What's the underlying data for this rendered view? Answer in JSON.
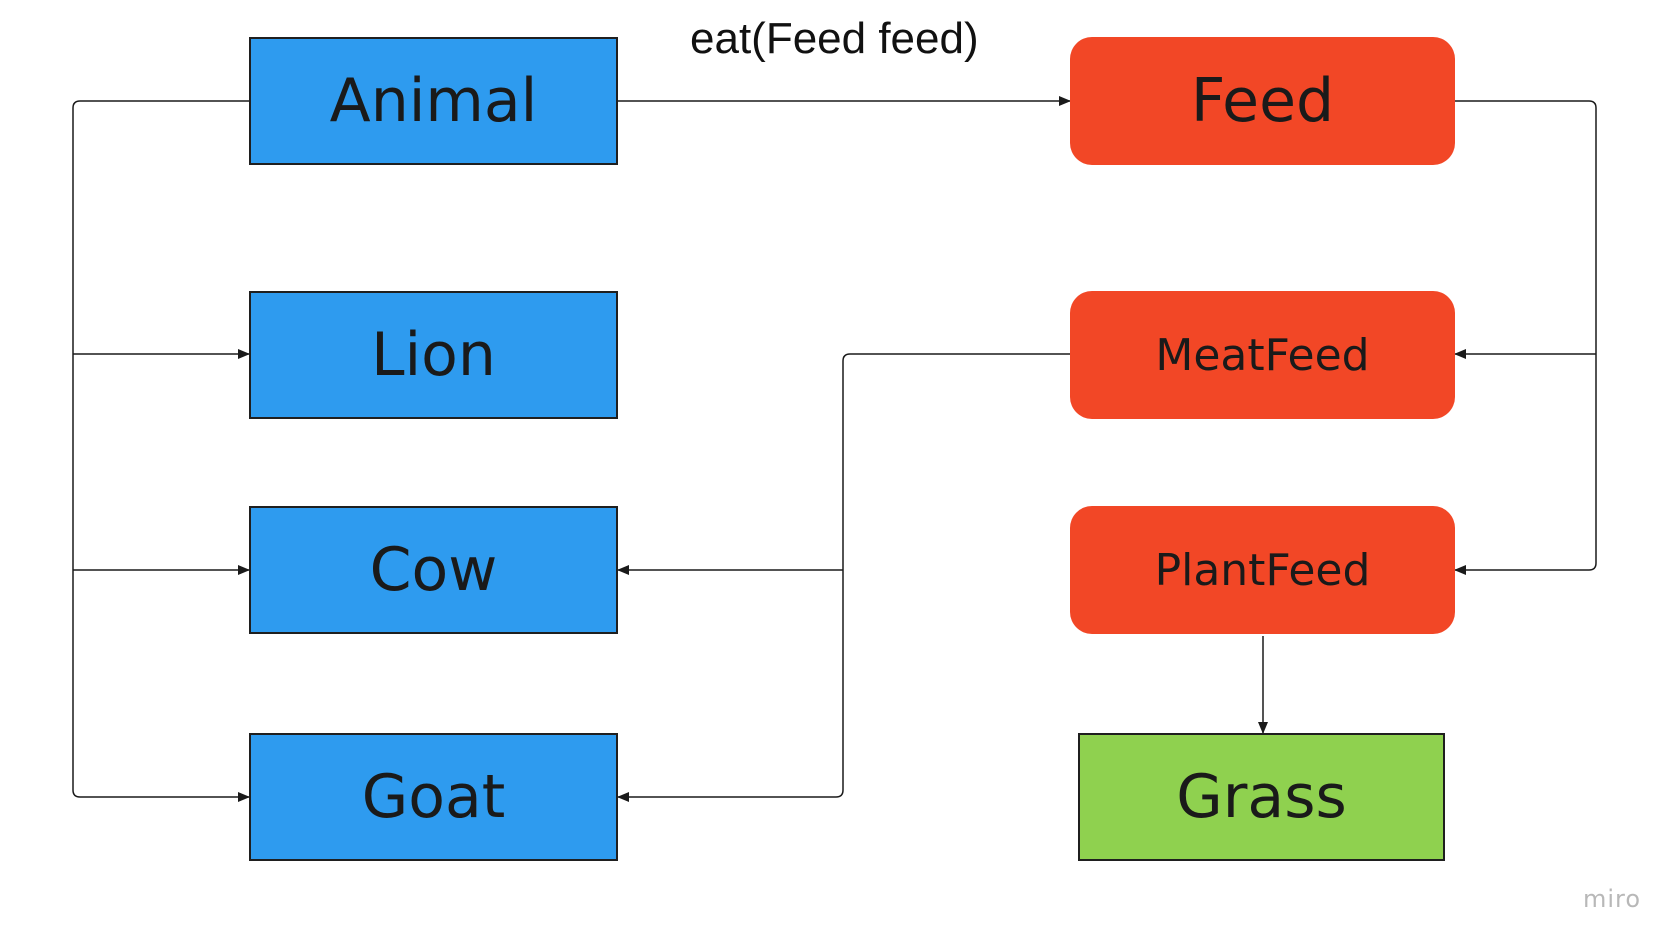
{
  "nodes": {
    "animal": {
      "label": "Animal"
    },
    "lion": {
      "label": "Lion"
    },
    "cow": {
      "label": "Cow"
    },
    "goat": {
      "label": "Goat"
    },
    "feed": {
      "label": "Feed"
    },
    "meat_feed": {
      "label": "MeatFeed"
    },
    "plant_feed": {
      "label": "PlantFeed"
    },
    "grass": {
      "label": "Grass"
    }
  },
  "edges": {
    "animal_to_feed_label": "eat(Feed feed)"
  },
  "colors": {
    "animal_group": "#2e9bef",
    "feed_group": "#f24726",
    "grass": "#8fd14f",
    "connector": "#1a1a1a"
  },
  "watermark": "miro"
}
